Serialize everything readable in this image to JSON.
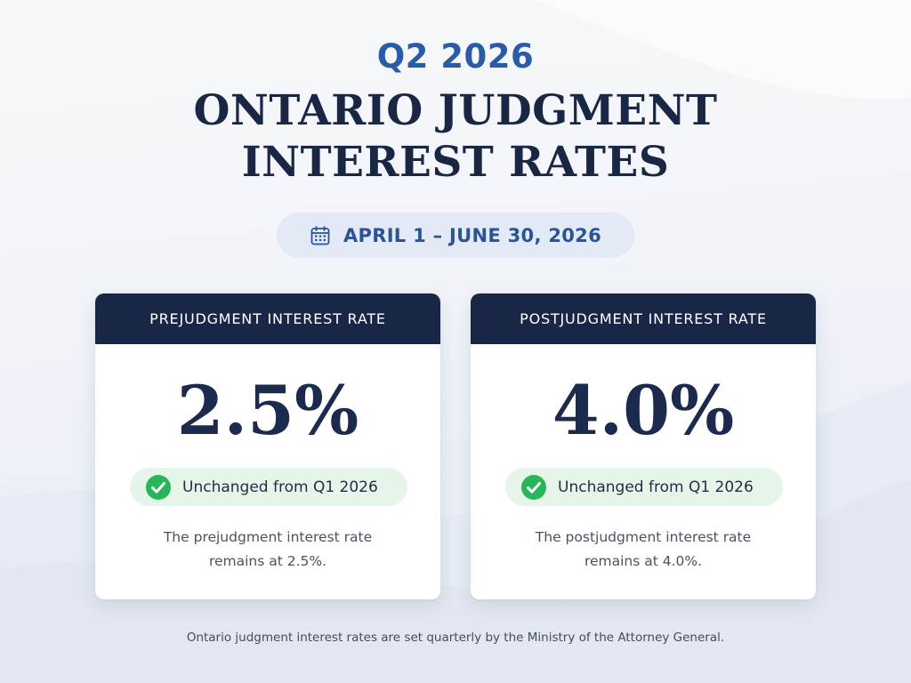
{
  "header": {
    "quarter": "Q2 2026",
    "title_lines": [
      "ONTARIO JUDGMENT",
      "INTEREST RATES"
    ],
    "date_range": "APRIL 1 – JUNE 30, 2026",
    "date_icon": "calendar-icon"
  },
  "cards": [
    {
      "heading": "PREJUDGMENT INTEREST RATE",
      "rate": "2.5%",
      "status": "Unchanged from Q1 2026",
      "status_icon": "check-circle-icon",
      "description_lines": [
        "The prejudgment interest rate",
        "remains at 2.5%."
      ]
    },
    {
      "heading": "POSTJUDGMENT INTEREST RATE",
      "rate": "4.0%",
      "status": "Unchanged from Q1 2026",
      "status_icon": "check-circle-icon",
      "description_lines": [
        "The postjudgment interest rate",
        "remains at 4.0%."
      ]
    }
  ],
  "footer": {
    "note": "Ontario judgment interest rates are set quarterly by the Ministry of the Attorney General."
  },
  "colors": {
    "navy": "#1a2646",
    "accent_blue": "#2a5ca6",
    "success_green": "#2bb55a",
    "badge_green_bg": "#e6f5ea",
    "pill_bg": "#e3eaf5"
  }
}
